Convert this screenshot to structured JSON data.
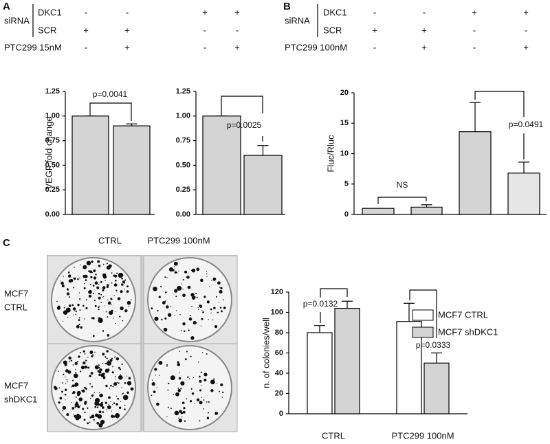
{
  "panel_labels": [
    "A",
    "B",
    "C"
  ],
  "conditions": [
    {
      "group_label": "siRNA",
      "rows": [
        {
          "label": "DKC1",
          "marks": [
            "-",
            "-",
            "+",
            "+"
          ]
        },
        {
          "label": "SCR",
          "marks": [
            "+",
            "+",
            "-",
            "-"
          ]
        },
        {
          "label": "PTC299 15nM",
          "marks": [
            "-",
            "+",
            "-",
            "+"
          ]
        }
      ]
    },
    {
      "group_label": "siRNA",
      "rows": [
        {
          "label": "DKC1",
          "marks": [
            "-",
            "-",
            "+",
            "+"
          ]
        },
        {
          "label": "SCR",
          "marks": [
            "+",
            "+",
            "-",
            "-"
          ]
        },
        {
          "label": "PTC299 100nM",
          "marks": [
            "-",
            "+",
            "-",
            "+"
          ]
        }
      ]
    }
  ],
  "photo": {
    "column_labels": [
      "CTRL",
      "PTC299 100nM"
    ],
    "row_labels": [
      [
        "MCF7",
        "CTRL"
      ],
      [
        "MCF7",
        "shDKC1"
      ]
    ]
  },
  "chart_data": [
    {
      "type": "bar",
      "y_label": "VEGF fold change",
      "values": [
        1.0,
        0.9
      ],
      "errors": [
        0,
        0.02
      ],
      "color": "#d4d4d4",
      "ylim": [
        0,
        1.25
      ],
      "yticks": [
        {
          "value": 0,
          "label": "0.00"
        },
        {
          "value": 0.25,
          "label": "0.25"
        },
        {
          "value": 0.5,
          "label": "0.50"
        },
        {
          "value": 0.75,
          "label": "0.75"
        },
        {
          "value": 1,
          "label": "1.00"
        },
        {
          "value": 1.25,
          "label": "1.25"
        }
      ],
      "annotations": [
        "p=0.0041"
      ]
    },
    {
      "type": "bar",
      "values": [
        1.0,
        0.6
      ],
      "errors": [
        0,
        0.1
      ],
      "color": "#d4d4d4",
      "ylim": [
        0,
        1.25
      ],
      "yticks": [
        {
          "value": 0,
          "label": "0.00"
        },
        {
          "value": 0.25,
          "label": "0.25"
        },
        {
          "value": 0.5,
          "label": "0.50"
        },
        {
          "value": 0.75,
          "label": "0.75"
        },
        {
          "value": 1,
          "label": "1.00"
        },
        {
          "value": 1.25,
          "label": "1.25"
        }
      ],
      "annotations": [
        "p=0.0025"
      ]
    },
    {
      "type": "bar",
      "y_label": "Fluc/Rluc",
      "values": [
        1.0,
        1.2,
        13.6,
        6.8
      ],
      "errors": [
        0,
        0.4,
        4.8,
        1.8
      ],
      "colors": [
        "#d4d4d4",
        "#d4d4d4",
        "#d4d4d4",
        "#e6e6e6"
      ],
      "ylim": [
        0,
        20
      ],
      "yticks": [
        0,
        5,
        10,
        15,
        20
      ],
      "annotations": [
        "NS",
        "p=0.0491"
      ]
    },
    {
      "type": "grouped_bar",
      "y_label": "n. of colonies/well",
      "categories": [
        "CTRL",
        "PTC299 100nM"
      ],
      "series": [
        {
          "name": "MCF7 CTRL",
          "color": "#ffffff",
          "values": [
            80,
            91
          ],
          "errors": [
            7,
            18
          ]
        },
        {
          "name": "MCF7 shDKC1",
          "color": "#d4d4d4",
          "values": [
            104,
            50
          ],
          "errors": [
            7,
            10
          ]
        }
      ],
      "ylim": [
        0,
        120
      ],
      "yticks": [
        0,
        20,
        40,
        60,
        80,
        100,
        120
      ],
      "legend": "upper right",
      "annotations": [
        "p=0.0132",
        "p=0.0333"
      ]
    }
  ]
}
